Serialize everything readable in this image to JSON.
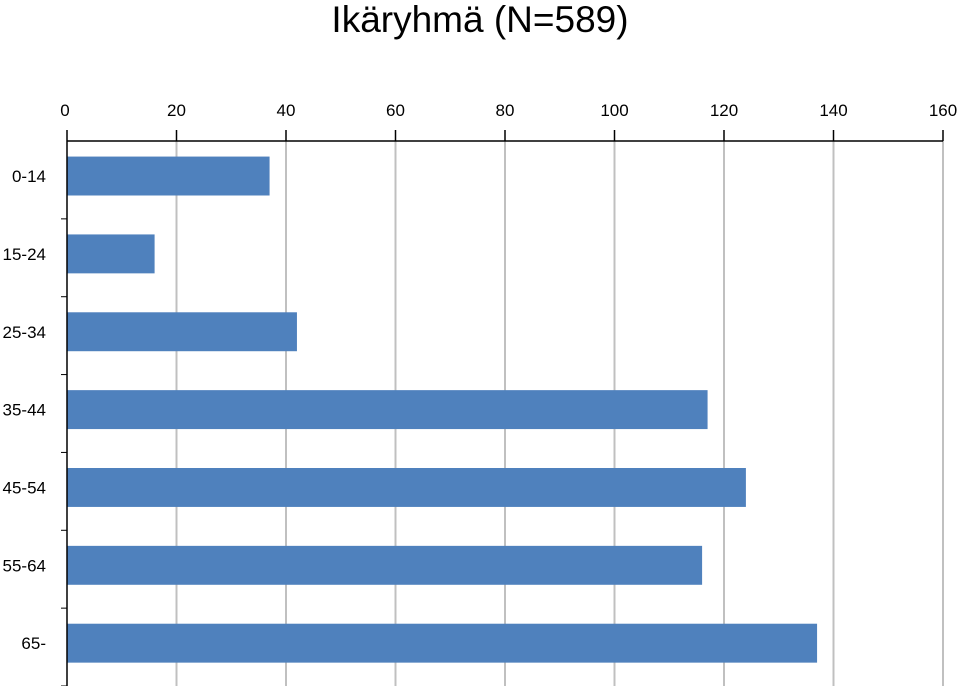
{
  "chart_data": {
    "type": "bar",
    "orientation": "horizontal",
    "title": "Ikäryhmä (N=589)",
    "categories": [
      "0-14",
      "15-24",
      "25-34",
      "35-44",
      "45-54",
      "55-64",
      "65-"
    ],
    "values": [
      37,
      16,
      42,
      117,
      124,
      116,
      137
    ],
    "xlim": [
      0,
      160
    ],
    "xticks": [
      "0",
      "20",
      "40",
      "60",
      "80",
      "100",
      "120",
      "140",
      "160"
    ],
    "xaxis_position": "top",
    "grid": true,
    "legend": "none",
    "colors": {
      "bar": "#4f81bd",
      "grid": "#c0c0c0",
      "axis": "#000000"
    }
  }
}
